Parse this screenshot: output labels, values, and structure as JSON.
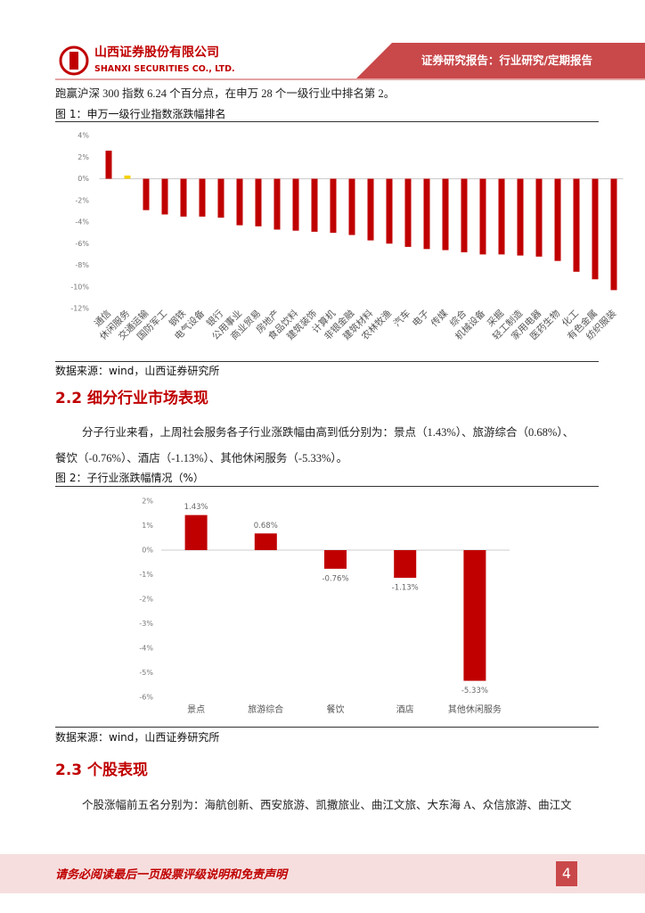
{
  "header": {
    "company_cn": "山西证券股份有限公司",
    "company_en": "SHANXI SECURITIES CO., LTD.",
    "report_type": "证券研究报告：行业研究/定期报告"
  },
  "intro_text": "跑赢沪深 300 指数 6.24 个百分点，在申万 28 个一级行业中排名第 2。",
  "figure1": {
    "caption": "图 1：申万一级行业指数涨跌幅排名",
    "source": "数据来源：wind，山西证券研究所"
  },
  "section22": {
    "title": "2.2 细分行业市场表现",
    "paragraph_1": "分子行业来看，上周社会服务各子行业涨跌幅由高到低分别为：景点（1.43%）、旅游综合（0.68%）、",
    "paragraph_2": "餐饮（-0.76%）、酒店（-1.13%）、其他休闲服务（-5.33%）。"
  },
  "figure2": {
    "caption": "图 2：子行业涨跌幅情况（%）",
    "source": "数据来源：wind，山西证券研究所"
  },
  "section23": {
    "title": "2.3 个股表现",
    "paragraph_1": "个股涨幅前五名分别为：海航创新、西安旅游、凯撒旅业、曲江文旅、大东海 A、众信旅游、曲江文"
  },
  "footer": {
    "disclaimer": "请务必阅读最后一页股票评级说明和免责声明",
    "page_number": "4"
  },
  "chart_data": [
    {
      "type": "bar",
      "categories": [
        "通信",
        "休闲服务",
        "交通运输",
        "国防军工",
        "钢铁",
        "电气设备",
        "银行",
        "公用事业",
        "商业贸易",
        "房地产",
        "食品饮料",
        "建筑装饰",
        "计算机",
        "非银金融",
        "建筑材料",
        "农林牧渔",
        "汽车",
        "电子",
        "传媒",
        "综合",
        "机械设备",
        "采掘",
        "轻工制造",
        "家用电器",
        "医药生物",
        "化工",
        "有色金属",
        "纺织服装"
      ],
      "values": [
        2.6,
        0.3,
        -2.9,
        -3.3,
        -3.5,
        -3.5,
        -3.6,
        -4.3,
        -4.4,
        -4.7,
        -4.8,
        -4.9,
        -5.0,
        -5.2,
        -5.7,
        -6.0,
        -6.3,
        -6.5,
        -6.6,
        -6.8,
        -7.0,
        -7.0,
        -7.1,
        -7.2,
        -7.6,
        -8.6,
        -9.3,
        -10.3
      ],
      "colors": [
        "#c00000",
        "#f5d000",
        "#c00000",
        "#c00000",
        "#c00000",
        "#c00000",
        "#c00000",
        "#c00000",
        "#c00000",
        "#c00000",
        "#c00000",
        "#c00000",
        "#c00000",
        "#c00000",
        "#c00000",
        "#c00000",
        "#c00000",
        "#c00000",
        "#c00000",
        "#c00000",
        "#c00000",
        "#c00000",
        "#c00000",
        "#c00000",
        "#c00000",
        "#c00000",
        "#c00000",
        "#c00000"
      ],
      "ylim": [
        -12,
        4
      ],
      "yticks": [
        {
          "value": 4,
          "label": "4%"
        },
        {
          "value": 2,
          "label": "2%"
        },
        {
          "value": 0,
          "label": "0%"
        },
        {
          "value": -2,
          "label": "-2%"
        },
        {
          "value": -4,
          "label": "-4%"
        },
        {
          "value": -6,
          "label": "-6%"
        },
        {
          "value": -8,
          "label": "-8%"
        },
        {
          "value": -10,
          "label": "-10%"
        },
        {
          "value": -12,
          "label": "-12%"
        }
      ]
    },
    {
      "type": "bar",
      "categories": [
        "景点",
        "旅游综合",
        "餐饮",
        "酒店",
        "其他休闲服务"
      ],
      "values": [
        1.43,
        0.68,
        -0.76,
        -1.13,
        -5.33
      ],
      "value_labels": [
        "1.43%",
        "0.68%",
        "-0.76%",
        "-1.13%",
        "-5.33%"
      ],
      "color": "#c00000",
      "ylim": [
        -6,
        2
      ],
      "yticks": [
        {
          "value": 2,
          "label": "2%"
        },
        {
          "value": 1,
          "label": "1%"
        },
        {
          "value": 0,
          "label": "0%"
        },
        {
          "value": -1,
          "label": "-1%"
        },
        {
          "value": -2,
          "label": "-2%"
        },
        {
          "value": -3,
          "label": "-3%"
        },
        {
          "value": -4,
          "label": "-4%"
        },
        {
          "value": -5,
          "label": "-5%"
        },
        {
          "value": -6,
          "label": "-6%"
        }
      ]
    }
  ]
}
